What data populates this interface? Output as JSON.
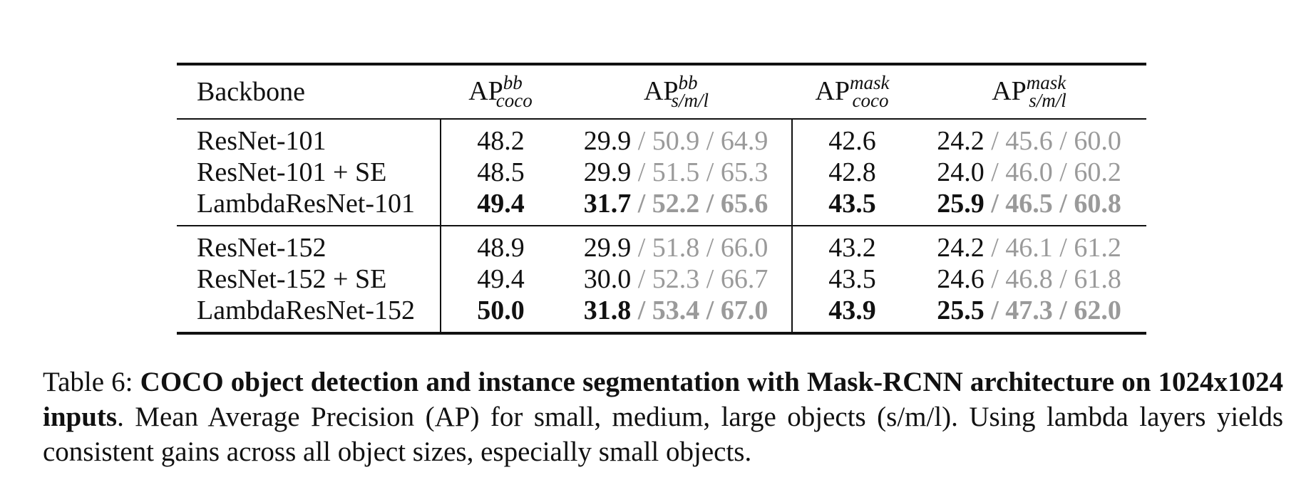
{
  "table": {
    "headers": {
      "backbone": "Backbone",
      "ap_bb_coco": {
        "base": "AP",
        "sup": "bb",
        "sub": "coco"
      },
      "ap_bb_sml": {
        "base": "AP",
        "sup": "bb",
        "sub": "s/m/l"
      },
      "ap_mask_coco": {
        "base": "AP",
        "sup": "mask",
        "sub": "coco"
      },
      "ap_mask_sml": {
        "base": "AP",
        "sup": "mask",
        "sub": "s/m/l"
      }
    },
    "groups": [
      {
        "rows": [
          {
            "backbone": "ResNet-101",
            "ap_bb": "48.2",
            "bb_s": "29.9",
            "bb_m": "50.9",
            "bb_l": "64.9",
            "ap_mask": "42.6",
            "mask_s": "24.2",
            "mask_m": "45.6",
            "mask_l": "60.0"
          },
          {
            "backbone": "ResNet-101 + SE",
            "ap_bb": "48.5",
            "bb_s": "29.9",
            "bb_m": "51.5",
            "bb_l": "65.3",
            "ap_mask": "42.8",
            "mask_s": "24.0",
            "mask_m": "46.0",
            "mask_l": "60.2"
          },
          {
            "backbone": "LambdaResNet-101",
            "ap_bb": "49.4",
            "bb_s": "31.7",
            "bb_m": "52.2",
            "bb_l": "65.6",
            "ap_mask": "43.5",
            "mask_s": "25.9",
            "mask_m": "46.5",
            "mask_l": "60.8"
          }
        ]
      },
      {
        "rows": [
          {
            "backbone": "ResNet-152",
            "ap_bb": "48.9",
            "bb_s": "29.9",
            "bb_m": "51.8",
            "bb_l": "66.0",
            "ap_mask": "43.2",
            "mask_s": "24.2",
            "mask_m": "46.1",
            "mask_l": "61.2"
          },
          {
            "backbone": "ResNet-152 + SE",
            "ap_bb": "49.4",
            "bb_s": "30.0",
            "bb_m": "52.3",
            "bb_l": "66.7",
            "ap_mask": "43.5",
            "mask_s": "24.6",
            "mask_m": "46.8",
            "mask_l": "61.8"
          },
          {
            "backbone": "LambdaResNet-152",
            "ap_bb": "50.0",
            "bb_s": "31.8",
            "bb_m": "53.4",
            "bb_l": "67.0",
            "ap_mask": "43.9",
            "mask_s": "25.5",
            "mask_m": "47.3",
            "mask_l": "62.0"
          }
        ]
      }
    ],
    "separator": " / "
  },
  "caption": {
    "label": "Table 6: ",
    "bold_part": "COCO object detection and instance segmentation with Mask-RCNN architecture on 1024x1024 inputs",
    "rest": ". Mean Average Precision (AP) for small, medium, large objects (s/m/l). Using lambda layers yields consistent gains across all object sizes, especially small objects."
  },
  "colors": {
    "text": "#111111",
    "secondary_values": "#9a9a9a"
  }
}
